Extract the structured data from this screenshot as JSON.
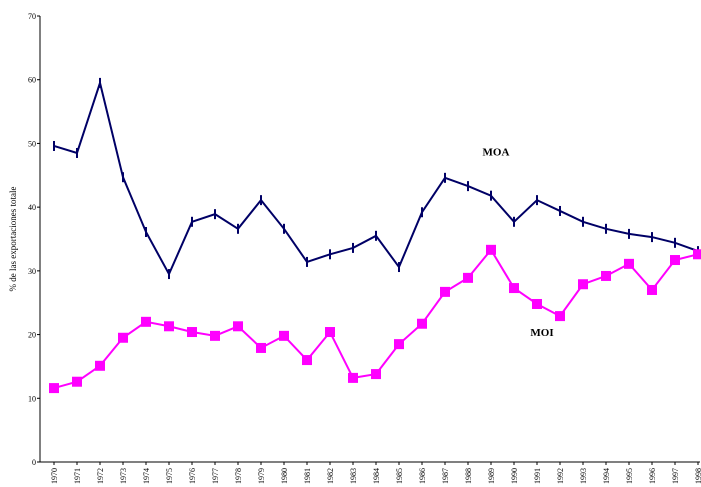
{
  "chart_data": {
    "type": "line",
    "y_label": "% de las exportaciones totale",
    "categories": [
      "1970",
      "1971",
      "1972",
      "1973",
      "1974",
      "1975",
      "1976",
      "1977",
      "1978",
      "1979",
      "1980",
      "1981",
      "1982",
      "1983",
      "1984",
      "1985",
      "1986",
      "1987",
      "1988",
      "1989",
      "1990",
      "1991",
      "1992",
      "1993",
      "1994",
      "1995",
      "1996",
      "1997",
      "1998"
    ],
    "series": [
      {
        "name": "MOA",
        "color": "#000066",
        "marker": "dash",
        "values": [
          49.6,
          48.5,
          59.5,
          44.7,
          36.1,
          29.5,
          37.7,
          38.9,
          36.6,
          41.1,
          36.6,
          31.4,
          32.6,
          33.6,
          35.5,
          30.6,
          39.2,
          44.6,
          43.3,
          41.8,
          37.7,
          41.1,
          39.4,
          37.7,
          36.6,
          35.8,
          35.3,
          34.4,
          33.1
        ]
      },
      {
        "name": "MOI",
        "color": "#ff00ff",
        "marker": "square",
        "values": [
          11.6,
          12.6,
          15.1,
          19.5,
          22.0,
          21.3,
          20.4,
          19.8,
          21.3,
          17.9,
          19.8,
          16.0,
          20.4,
          13.2,
          13.8,
          18.5,
          21.7,
          26.7,
          28.9,
          33.3,
          27.3,
          24.8,
          22.9,
          27.9,
          29.2,
          31.1,
          27.0,
          31.7,
          32.6
        ]
      }
    ],
    "ylim": [
      0,
      70
    ],
    "yticks": [
      0,
      10,
      20,
      30,
      40,
      50,
      60,
      70
    ],
    "grid": false
  }
}
